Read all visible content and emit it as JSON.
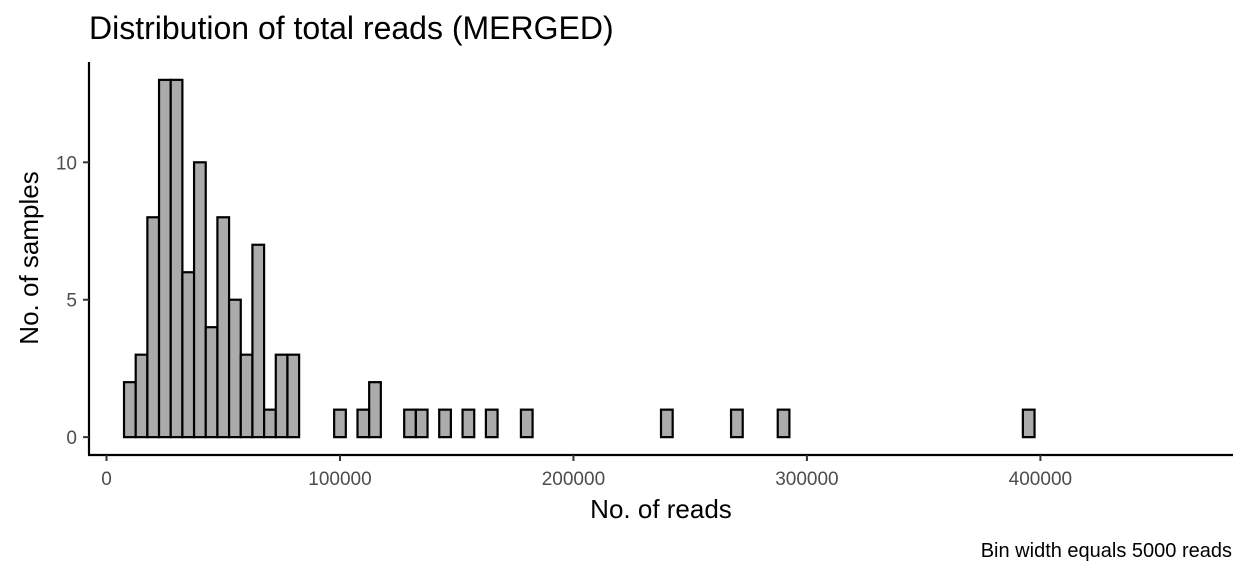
{
  "chart_data": {
    "type": "bar",
    "title": "Distribution of total reads (MERGED)",
    "xlabel": "No. of reads",
    "ylabel": "No. of samples",
    "caption": "Bin width equals 5000 reads",
    "bin_width": 5000,
    "xlim": [
      -7500,
      482500
    ],
    "ylim": [
      -0.65,
      13.65
    ],
    "x_ticks": [
      0,
      100000,
      200000,
      300000,
      400000
    ],
    "x_tick_labels": [
      "0",
      "100000",
      "200000",
      "300000",
      "400000"
    ],
    "y_ticks": [
      0,
      5,
      10
    ],
    "y_tick_labels": [
      "0",
      "5",
      "10"
    ],
    "grid": false,
    "legend": "none",
    "bar_fill": "#ababab",
    "bar_stroke": "#000000",
    "bins": [
      {
        "x": 0,
        "count": 0
      },
      {
        "x": 5000,
        "count": 0
      },
      {
        "x": 10000,
        "count": 2
      },
      {
        "x": 15000,
        "count": 3
      },
      {
        "x": 20000,
        "count": 8
      },
      {
        "x": 25000,
        "count": 13
      },
      {
        "x": 30000,
        "count": 13
      },
      {
        "x": 35000,
        "count": 6
      },
      {
        "x": 40000,
        "count": 10
      },
      {
        "x": 45000,
        "count": 4
      },
      {
        "x": 50000,
        "count": 8
      },
      {
        "x": 55000,
        "count": 5
      },
      {
        "x": 60000,
        "count": 3
      },
      {
        "x": 65000,
        "count": 7
      },
      {
        "x": 70000,
        "count": 1
      },
      {
        "x": 75000,
        "count": 3
      },
      {
        "x": 80000,
        "count": 3
      },
      {
        "x": 85000,
        "count": 0
      },
      {
        "x": 90000,
        "count": 0
      },
      {
        "x": 95000,
        "count": 0
      },
      {
        "x": 100000,
        "count": 1
      },
      {
        "x": 105000,
        "count": 0
      },
      {
        "x": 110000,
        "count": 1
      },
      {
        "x": 115000,
        "count": 2
      },
      {
        "x": 120000,
        "count": 0
      },
      {
        "x": 125000,
        "count": 0
      },
      {
        "x": 130000,
        "count": 1
      },
      {
        "x": 135000,
        "count": 1
      },
      {
        "x": 140000,
        "count": 0
      },
      {
        "x": 145000,
        "count": 1
      },
      {
        "x": 150000,
        "count": 0
      },
      {
        "x": 155000,
        "count": 1
      },
      {
        "x": 160000,
        "count": 0
      },
      {
        "x": 165000,
        "count": 1
      },
      {
        "x": 170000,
        "count": 0
      },
      {
        "x": 175000,
        "count": 0
      },
      {
        "x": 180000,
        "count": 1
      },
      {
        "x": 185000,
        "count": 0
      },
      {
        "x": 190000,
        "count": 0
      },
      {
        "x": 195000,
        "count": 0
      },
      {
        "x": 200000,
        "count": 0
      },
      {
        "x": 205000,
        "count": 0
      },
      {
        "x": 210000,
        "count": 0
      },
      {
        "x": 215000,
        "count": 0
      },
      {
        "x": 220000,
        "count": 0
      },
      {
        "x": 225000,
        "count": 0
      },
      {
        "x": 230000,
        "count": 0
      },
      {
        "x": 235000,
        "count": 0
      },
      {
        "x": 240000,
        "count": 1
      },
      {
        "x": 245000,
        "count": 0
      },
      {
        "x": 250000,
        "count": 0
      },
      {
        "x": 255000,
        "count": 0
      },
      {
        "x": 260000,
        "count": 0
      },
      {
        "x": 265000,
        "count": 0
      },
      {
        "x": 270000,
        "count": 1
      },
      {
        "x": 275000,
        "count": 0
      },
      {
        "x": 280000,
        "count": 0
      },
      {
        "x": 285000,
        "count": 0
      },
      {
        "x": 290000,
        "count": 1
      },
      {
        "x": 295000,
        "count": 0
      },
      {
        "x": 300000,
        "count": 0
      },
      {
        "x": 305000,
        "count": 0
      },
      {
        "x": 310000,
        "count": 0
      },
      {
        "x": 315000,
        "count": 0
      },
      {
        "x": 320000,
        "count": 0
      },
      {
        "x": 325000,
        "count": 0
      },
      {
        "x": 330000,
        "count": 0
      },
      {
        "x": 335000,
        "count": 0
      },
      {
        "x": 340000,
        "count": 0
      },
      {
        "x": 345000,
        "count": 0
      },
      {
        "x": 350000,
        "count": 0
      },
      {
        "x": 355000,
        "count": 0
      },
      {
        "x": 360000,
        "count": 0
      },
      {
        "x": 365000,
        "count": 0
      },
      {
        "x": 370000,
        "count": 0
      },
      {
        "x": 375000,
        "count": 0
      },
      {
        "x": 380000,
        "count": 0
      },
      {
        "x": 385000,
        "count": 0
      },
      {
        "x": 390000,
        "count": 0
      },
      {
        "x": 395000,
        "count": 1
      },
      {
        "x": 400000,
        "count": 0
      },
      {
        "x": 405000,
        "count": 0
      },
      {
        "x": 410000,
        "count": 0
      },
      {
        "x": 415000,
        "count": 0
      },
      {
        "x": 420000,
        "count": 0
      },
      {
        "x": 425000,
        "count": 0
      },
      {
        "x": 430000,
        "count": 0
      },
      {
        "x": 435000,
        "count": 0
      },
      {
        "x": 440000,
        "count": 0
      },
      {
        "x": 445000,
        "count": 0
      },
      {
        "x": 450000,
        "count": 0
      },
      {
        "x": 455000,
        "count": 0
      },
      {
        "x": 460000,
        "count": 0
      },
      {
        "x": 465000,
        "count": 0
      },
      {
        "x": 470000,
        "count": 0
      }
    ]
  }
}
